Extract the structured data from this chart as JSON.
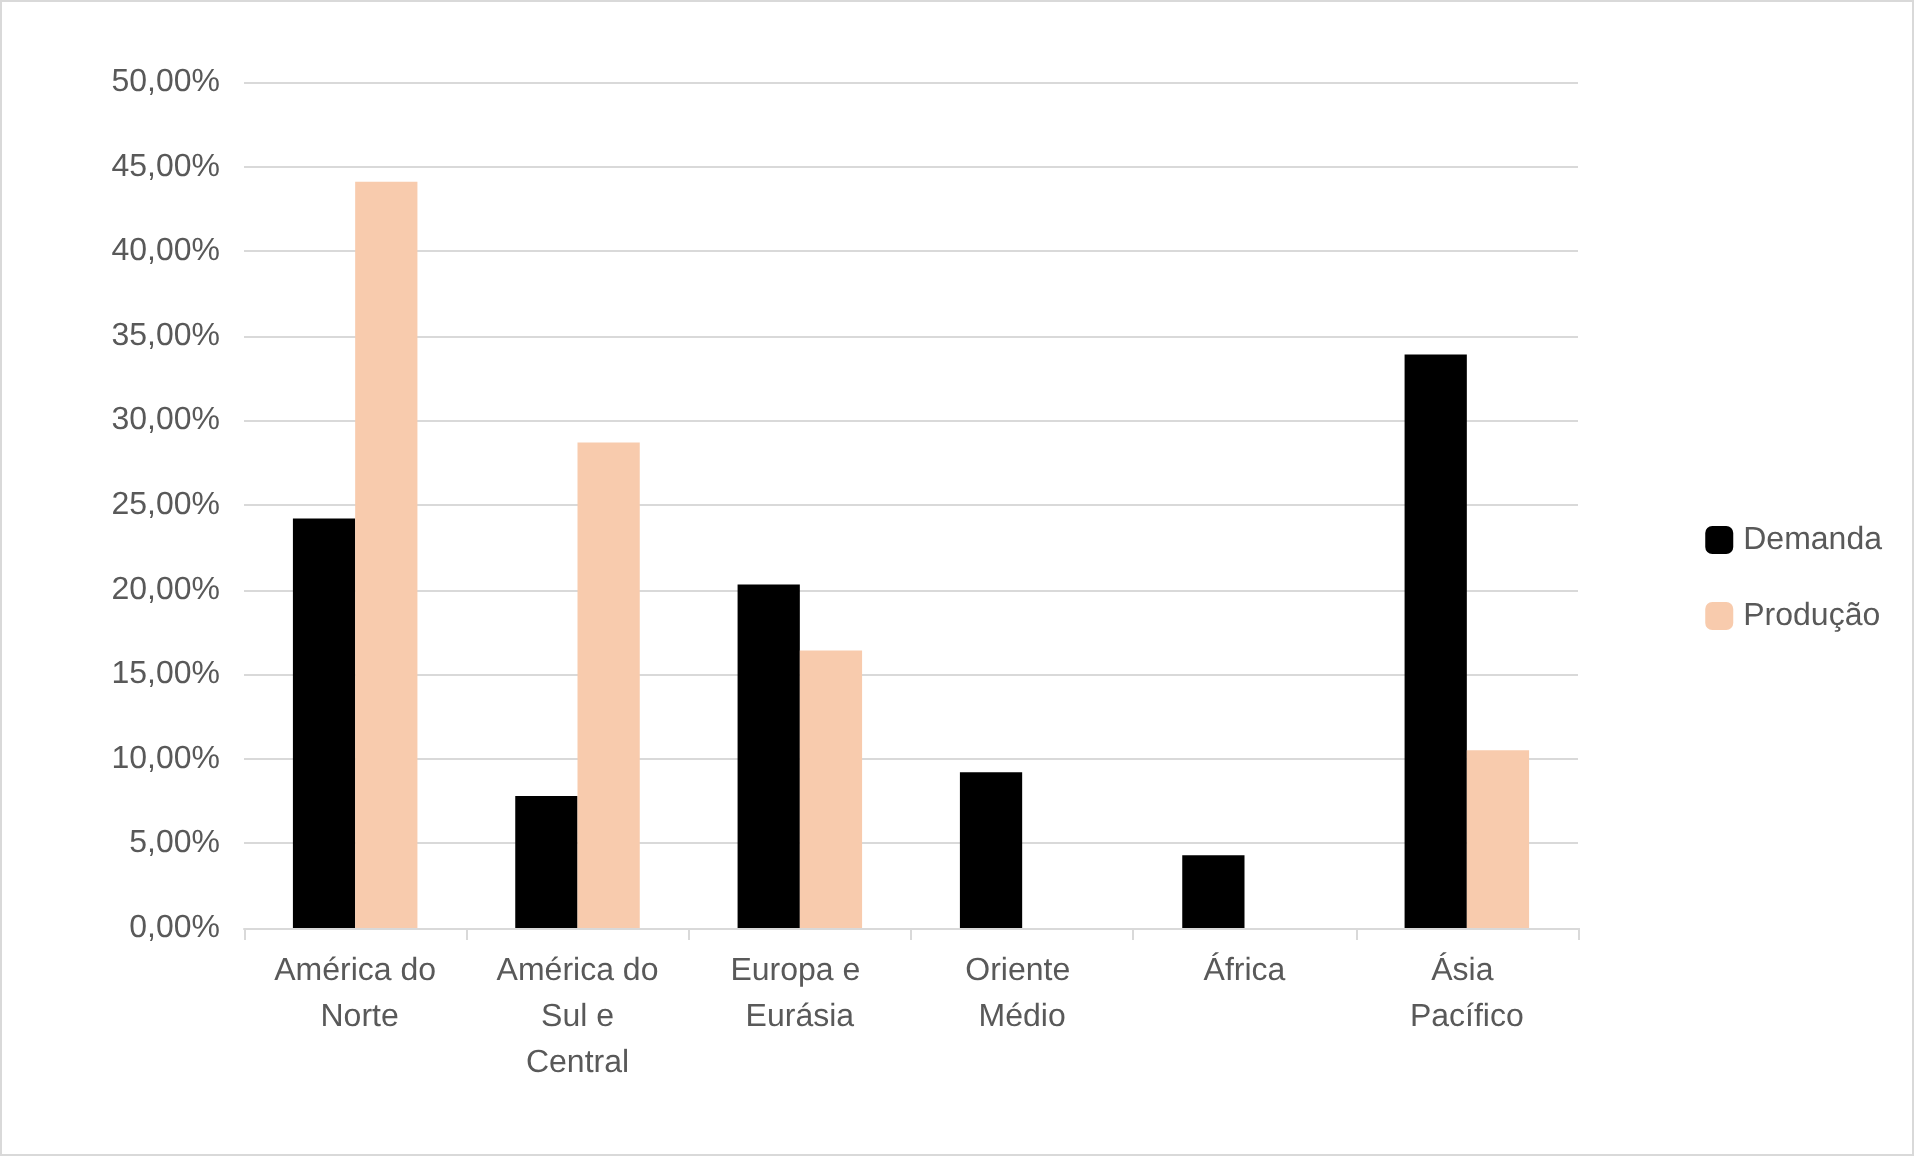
{
  "chart_data": {
    "type": "bar",
    "categories": [
      "América do Norte",
      "América do Sul e Central",
      "Europa e Eurásia",
      "Oriente Médio",
      "África",
      "Ásia Pacífico"
    ],
    "series": [
      {
        "name": "Demanda",
        "color": "#000000",
        "values": [
          24.2,
          7.8,
          20.3,
          9.2,
          4.3,
          33.9
        ]
      },
      {
        "name": "Produção",
        "color": "#f8cbad",
        "values": [
          44.1,
          28.7,
          16.4,
          null,
          null,
          10.5
        ]
      }
    ],
    "ylim": [
      0,
      50
    ],
    "yticks": [
      {
        "value": 0,
        "label": "0,00%"
      },
      {
        "value": 5,
        "label": "5,00%"
      },
      {
        "value": 10,
        "label": "10,00%"
      },
      {
        "value": 15,
        "label": "15,00%"
      },
      {
        "value": 20,
        "label": "20,00%"
      },
      {
        "value": 25,
        "label": "25,00%"
      },
      {
        "value": 30,
        "label": "30,00%"
      },
      {
        "value": 35,
        "label": "35,00%"
      },
      {
        "value": 40,
        "label": "40,00%"
      },
      {
        "value": 45,
        "label": "45,00%"
      },
      {
        "value": 50,
        "label": "50,00%"
      }
    ],
    "grid": "y",
    "legend": "right"
  }
}
